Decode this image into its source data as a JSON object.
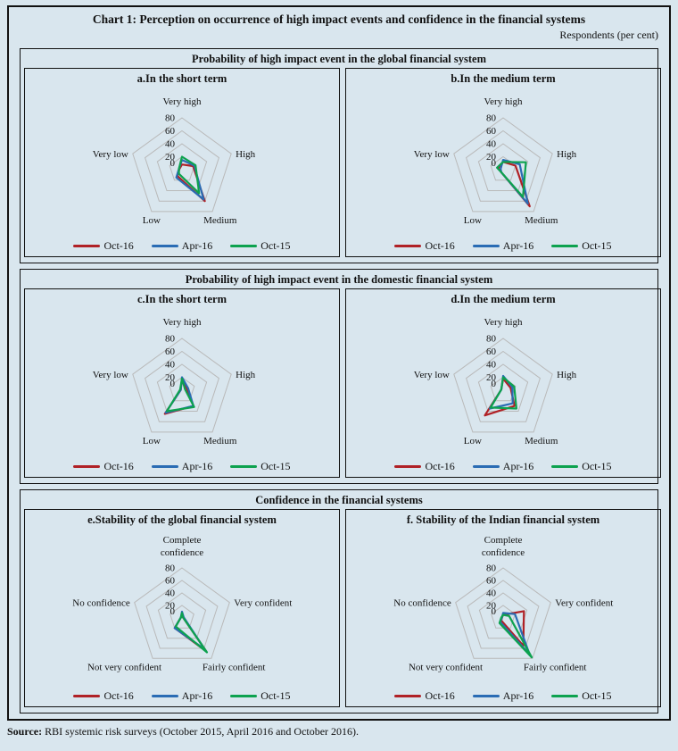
{
  "page": {
    "title": "Chart 1: Perception on occurrence of high impact events and confidence in the financial systems",
    "units_note": "Respondents (per cent)"
  },
  "source": {
    "label": "Source:",
    "text": " RBI systemic risk surveys (October 2015, April 2016 and October 2016)."
  },
  "colors": {
    "oct16": "#b02126",
    "apr16": "#2a6cb4",
    "oct15": "#0da24f",
    "grid": "#b9b9b9",
    "background": "#d9e6ee",
    "border": "#111111"
  },
  "legend": [
    {
      "label": "Oct-16",
      "color_key": "oct16"
    },
    {
      "label": "Apr-16",
      "color_key": "apr16"
    },
    {
      "label": "Oct-15",
      "color_key": "oct15"
    }
  ],
  "panels": [
    {
      "header": "Probability of high impact event in the global financial system",
      "chart_indexes": [
        0,
        1
      ]
    },
    {
      "header": "Probability of high impact event in the domestic financial system",
      "chart_indexes": [
        2,
        3
      ]
    },
    {
      "header": "Confidence in the financial systems",
      "chart_indexes": [
        4,
        5
      ]
    }
  ],
  "chart_data": [
    {
      "type": "radar",
      "title": "a.In the short term",
      "categories": [
        "Very high",
        "High",
        "Medium",
        "Low",
        "Very low"
      ],
      "top_label_lines": [
        "Very high"
      ],
      "max": 80,
      "ticks": [
        0,
        20,
        40,
        60,
        80
      ],
      "series": [
        {
          "name": "Oct-16",
          "color_key": "oct16",
          "values": [
            8,
            18,
            60,
            12,
            4
          ]
        },
        {
          "name": "Apr-16",
          "color_key": "apr16",
          "values": [
            15,
            20,
            57,
            15,
            5
          ]
        },
        {
          "name": "Oct-15",
          "color_key": "oct15",
          "values": [
            20,
            22,
            45,
            8,
            5
          ]
        }
      ]
    },
    {
      "type": "radar",
      "title": "b.In the medium term",
      "categories": [
        "Very high",
        "High",
        "Medium",
        "Low",
        "Very low"
      ],
      "top_label_lines": [
        "Very high"
      ],
      "max": 80,
      "ticks": [
        0,
        20,
        40,
        60,
        80
      ],
      "series": [
        {
          "name": "Oct-16",
          "color_key": "oct16",
          "values": [
            12,
            20,
            70,
            5,
            8
          ]
        },
        {
          "name": "Apr-16",
          "color_key": "apr16",
          "values": [
            15,
            27,
            65,
            5,
            4
          ]
        },
        {
          "name": "Oct-15",
          "color_key": "oct15",
          "values": [
            12,
            37,
            52,
            5,
            10
          ]
        }
      ]
    },
    {
      "type": "radar",
      "title": "c.In the short term",
      "categories": [
        "Very high",
        "High",
        "Medium",
        "Low",
        "Very low"
      ],
      "top_label_lines": [
        "Very high"
      ],
      "max": 80,
      "ticks": [
        0,
        20,
        40,
        60,
        80
      ],
      "series": [
        {
          "name": "Oct-16",
          "color_key": "oct16",
          "values": [
            18,
            8,
            30,
            45,
            2
          ]
        },
        {
          "name": "Apr-16",
          "color_key": "apr16",
          "values": [
            20,
            10,
            30,
            43,
            2
          ]
        },
        {
          "name": "Oct-15",
          "color_key": "oct15",
          "values": [
            18,
            5,
            32,
            40,
            3
          ]
        }
      ]
    },
    {
      "type": "radar",
      "title": "d.In the medium term",
      "categories": [
        "Very high",
        "High",
        "Medium",
        "Low",
        "Very low"
      ],
      "top_label_lines": [
        "Very high"
      ],
      "max": 80,
      "ticks": [
        0,
        20,
        40,
        60,
        80
      ],
      "series": [
        {
          "name": "Oct-16",
          "color_key": "oct16",
          "values": [
            18,
            12,
            30,
            48,
            3
          ]
        },
        {
          "name": "Apr-16",
          "color_key": "apr16",
          "values": [
            22,
            15,
            25,
            35,
            3
          ]
        },
        {
          "name": "Oct-15",
          "color_key": "oct15",
          "values": [
            20,
            18,
            35,
            33,
            3
          ]
        }
      ]
    },
    {
      "type": "radar",
      "title": "e.Stability of the global financial system",
      "categories": [
        "Complete confidence",
        "Very confident",
        "Fairly confident",
        "Not very confident",
        "No confidence"
      ],
      "top_label_lines": [
        "Complete",
        "confidence"
      ],
      "max": 80,
      "ticks": [
        0,
        20,
        40,
        60,
        80
      ],
      "series": [
        {
          "name": "Oct-16",
          "color_key": "oct16",
          "values": [
            6,
            2,
            66,
            20,
            2
          ]
        },
        {
          "name": "Apr-16",
          "color_key": "apr16",
          "values": [
            10,
            3,
            62,
            20,
            2
          ]
        },
        {
          "name": "Oct-15",
          "color_key": "oct15",
          "values": [
            8,
            2,
            68,
            17,
            2
          ]
        }
      ]
    },
    {
      "type": "radar",
      "title": "f. Stability of the Indian financial system",
      "categories": [
        "Complete confidence",
        "Very confident",
        "Fairly confident",
        "Not very confident",
        "No confidence"
      ],
      "top_label_lines": [
        "Complete",
        "confidence"
      ],
      "max": 80,
      "ticks": [
        0,
        20,
        40,
        60,
        80
      ],
      "series": [
        {
          "name": "Oct-16",
          "color_key": "oct16",
          "values": [
            5,
            35,
            55,
            5,
            2
          ]
        },
        {
          "name": "Apr-16",
          "color_key": "apr16",
          "values": [
            8,
            20,
            72,
            8,
            2
          ]
        },
        {
          "name": "Oct-15",
          "color_key": "oct15",
          "values": [
            5,
            10,
            78,
            10,
            3
          ]
        }
      ]
    }
  ]
}
